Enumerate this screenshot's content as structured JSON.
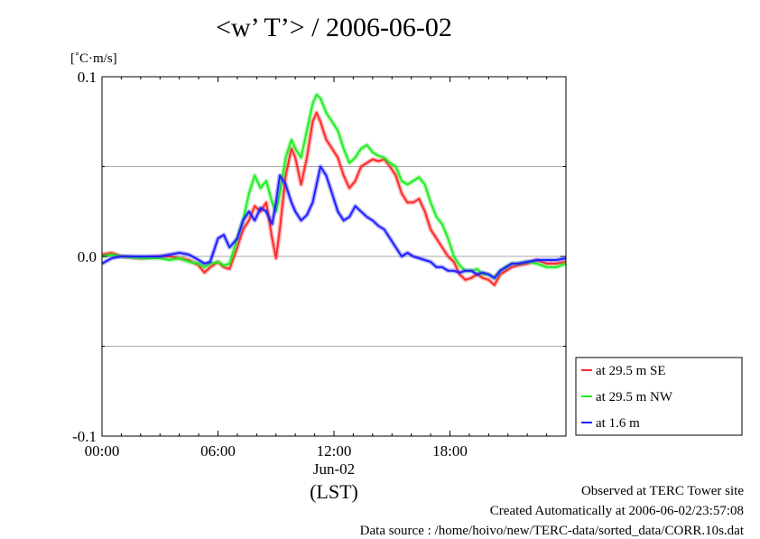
{
  "page": {
    "title": "<w’ T’> / 2006-06-02"
  },
  "footer": {
    "line1": "Observed at TERC Tower site",
    "line2": "Created Automatically at 2006-06-02/23:57:08",
    "line3": "Data source : /home/hoivo/new/TERC-data/sorted_data/CORR.10s.dat"
  },
  "colors": {
    "red": "#ff2b2b",
    "green": "#22ee22",
    "blue": "#2020ff",
    "grid": "#a8a8a8"
  },
  "chart_data": {
    "type": "line",
    "title": "<w’ T’> / 2006-06-02",
    "ylabel": "[˚C·m/s]",
    "xlabel": "(LST)",
    "x_date_label": "Jun-02",
    "xlim": [
      0,
      24
    ],
    "ylim": [
      -0.1,
      0.1
    ],
    "x_ticks": [
      0,
      6,
      12,
      18
    ],
    "x_tick_labels": [
      "00:00",
      "06:00",
      "12:00",
      "18:00"
    ],
    "y_ticks": [
      -0.1,
      0.0,
      0.1
    ],
    "y_tick_labels": [
      "-0.1",
      "0.0",
      "0.1"
    ],
    "y_gridlines": [
      -0.05,
      0.0,
      0.05
    ],
    "legend_position": "bottom-right",
    "series": [
      {
        "name": "at 29.5 m SE",
        "color": "#ff2b2b",
        "x": [
          0,
          0.5,
          1,
          2,
          3,
          3.5,
          4,
          4.5,
          5,
          5.3,
          5.6,
          6,
          6.3,
          6.6,
          7,
          7.3,
          7.6,
          7.9,
          8.2,
          8.5,
          8.8,
          9.0,
          9.2,
          9.5,
          9.8,
          10.0,
          10.3,
          10.6,
          10.9,
          11.1,
          11.3,
          11.6,
          11.9,
          12.2,
          12.5,
          12.8,
          13.1,
          13.4,
          13.7,
          14.0,
          14.3,
          14.6,
          14.9,
          15.2,
          15.5,
          15.8,
          16.1,
          16.4,
          16.7,
          17.0,
          17.3,
          17.6,
          17.9,
          18.2,
          18.5,
          18.8,
          19.1,
          19.4,
          19.7,
          20.0,
          20.3,
          20.6,
          20.9,
          21.2,
          21.5,
          22.0,
          22.5,
          23.0,
          23.5,
          24
        ],
        "y": [
          0.001,
          0.002,
          0.0,
          -0.001,
          0.0,
          0.0,
          -0.001,
          -0.002,
          -0.005,
          -0.009,
          -0.006,
          -0.003,
          -0.006,
          -0.007,
          0.005,
          0.015,
          0.02,
          0.028,
          0.025,
          0.03,
          0.01,
          -0.001,
          0.015,
          0.045,
          0.06,
          0.055,
          0.04,
          0.055,
          0.075,
          0.08,
          0.075,
          0.065,
          0.06,
          0.055,
          0.045,
          0.038,
          0.042,
          0.05,
          0.052,
          0.054,
          0.053,
          0.054,
          0.05,
          0.045,
          0.035,
          0.03,
          0.03,
          0.032,
          0.025,
          0.015,
          0.01,
          0.005,
          0.0,
          -0.003,
          -0.01,
          -0.013,
          -0.012,
          -0.01,
          -0.012,
          -0.013,
          -0.016,
          -0.01,
          -0.008,
          -0.006,
          -0.005,
          -0.004,
          -0.002,
          -0.004,
          -0.004,
          -0.003
        ]
      },
      {
        "name": "at 29.5 m NW",
        "color": "#22ee22",
        "x": [
          0,
          0.5,
          1,
          2,
          3,
          3.5,
          4,
          4.5,
          5,
          5.3,
          5.6,
          6,
          6.3,
          6.6,
          7,
          7.3,
          7.6,
          7.9,
          8.2,
          8.5,
          8.8,
          9.0,
          9.2,
          9.5,
          9.8,
          10.0,
          10.3,
          10.6,
          10.9,
          11.1,
          11.3,
          11.6,
          11.9,
          12.2,
          12.5,
          12.8,
          13.1,
          13.4,
          13.7,
          14.0,
          14.3,
          14.6,
          14.9,
          15.2,
          15.5,
          15.8,
          16.1,
          16.4,
          16.7,
          17.0,
          17.3,
          17.6,
          17.9,
          18.2,
          18.5,
          18.8,
          19.1,
          19.4,
          19.7,
          20.0,
          20.3,
          20.6,
          20.9,
          21.2,
          21.5,
          22.0,
          22.5,
          23.0,
          23.5,
          24
        ],
        "y": [
          0.0,
          0.001,
          0.0,
          -0.001,
          -0.001,
          -0.002,
          -0.001,
          -0.003,
          -0.004,
          -0.006,
          -0.004,
          -0.003,
          -0.005,
          -0.004,
          0.01,
          0.02,
          0.035,
          0.045,
          0.038,
          0.042,
          0.03,
          0.025,
          0.035,
          0.055,
          0.065,
          0.06,
          0.055,
          0.07,
          0.085,
          0.09,
          0.088,
          0.08,
          0.075,
          0.07,
          0.06,
          0.052,
          0.055,
          0.06,
          0.062,
          0.058,
          0.056,
          0.055,
          0.052,
          0.05,
          0.042,
          0.04,
          0.042,
          0.044,
          0.04,
          0.03,
          0.022,
          0.018,
          0.01,
          0.0,
          -0.005,
          -0.008,
          -0.008,
          -0.007,
          -0.01,
          -0.01,
          -0.012,
          -0.008,
          -0.006,
          -0.004,
          -0.004,
          -0.003,
          -0.004,
          -0.006,
          -0.006,
          -0.004
        ]
      },
      {
        "name": "at 1.6 m",
        "color": "#2020ff",
        "x": [
          0,
          0.5,
          1,
          2,
          3,
          3.5,
          4,
          4.5,
          5,
          5.3,
          5.6,
          6,
          6.3,
          6.6,
          7,
          7.3,
          7.6,
          7.9,
          8.2,
          8.5,
          8.8,
          9.0,
          9.2,
          9.5,
          9.8,
          10.0,
          10.3,
          10.6,
          10.9,
          11.1,
          11.3,
          11.6,
          11.9,
          12.2,
          12.5,
          12.8,
          13.1,
          13.4,
          13.7,
          14.0,
          14.3,
          14.6,
          14.9,
          15.2,
          15.5,
          15.8,
          16.1,
          16.4,
          16.7,
          17.0,
          17.3,
          17.6,
          17.9,
          18.2,
          18.5,
          18.8,
          19.1,
          19.4,
          19.7,
          20.0,
          20.3,
          20.6,
          20.9,
          21.2,
          21.5,
          22.0,
          22.5,
          23.0,
          23.5,
          24
        ],
        "y": [
          -0.004,
          -0.001,
          0.0,
          0.0,
          0.0,
          0.001,
          0.002,
          0.001,
          -0.002,
          -0.004,
          -0.003,
          0.01,
          0.012,
          0.005,
          0.01,
          0.02,
          0.025,
          0.02,
          0.027,
          0.025,
          0.018,
          0.03,
          0.045,
          0.04,
          0.03,
          0.025,
          0.02,
          0.023,
          0.03,
          0.04,
          0.05,
          0.045,
          0.035,
          0.025,
          0.02,
          0.022,
          0.028,
          0.025,
          0.022,
          0.02,
          0.017,
          0.015,
          0.01,
          0.005,
          0.0,
          0.002,
          0.0,
          -0.001,
          -0.002,
          -0.003,
          -0.006,
          -0.006,
          -0.008,
          -0.008,
          -0.009,
          -0.008,
          -0.008,
          -0.01,
          -0.009,
          -0.01,
          -0.012,
          -0.008,
          -0.006,
          -0.004,
          -0.004,
          -0.003,
          -0.002,
          -0.002,
          -0.002,
          -0.001
        ]
      }
    ]
  }
}
